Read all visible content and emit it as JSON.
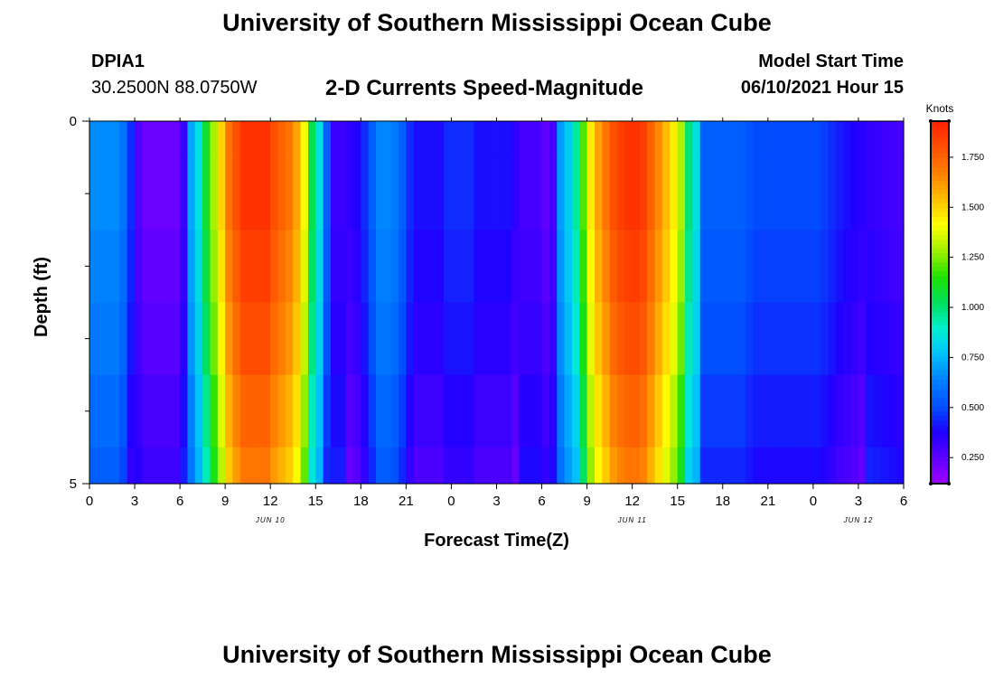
{
  "header": {
    "title": "University of Southern Mississippi Ocean Cube",
    "station_id": "DPIA1",
    "coordinates": "30.2500N  88.0750W",
    "plot_title": "2-D Currents Speed-Magnitude",
    "model_label": "Model Start Time",
    "model_time": "06/10/2021 Hour 15"
  },
  "footer": {
    "title": "University of Southern Mississippi Ocean Cube"
  },
  "chart_data": {
    "type": "heatmap",
    "title": "2-D Currents Speed-Magnitude",
    "xlabel": "Forecast Time(Z)",
    "ylabel": "Depth (ft)",
    "xlim": [
      0,
      54
    ],
    "ylim": [
      0,
      5
    ],
    "x_ticks": [
      {
        "v": 0,
        "label": "0"
      },
      {
        "v": 3,
        "label": "3"
      },
      {
        "v": 6,
        "label": "6"
      },
      {
        "v": 9,
        "label": "9"
      },
      {
        "v": 12,
        "label": "12"
      },
      {
        "v": 15,
        "label": "15"
      },
      {
        "v": 18,
        "label": "18"
      },
      {
        "v": 21,
        "label": "21"
      },
      {
        "v": 24,
        "label": "0"
      },
      {
        "v": 27,
        "label": "3"
      },
      {
        "v": 30,
        "label": "6"
      },
      {
        "v": 33,
        "label": "9"
      },
      {
        "v": 36,
        "label": "12"
      },
      {
        "v": 39,
        "label": "15"
      },
      {
        "v": 42,
        "label": "18"
      },
      {
        "v": 45,
        "label": "21"
      },
      {
        "v": 48,
        "label": "0"
      },
      {
        "v": 51,
        "label": "3"
      },
      {
        "v": 54,
        "label": "6"
      }
    ],
    "date_labels": [
      {
        "at": 12,
        "label": "JUN 10"
      },
      {
        "at": 36,
        "label": "JUN 11"
      },
      {
        "at": 51,
        "label": "JUN 12"
      }
    ],
    "y_ticks": [
      {
        "v": 0,
        "label": "0"
      },
      {
        "v": 5,
        "label": "5"
      }
    ],
    "y_minor_ticks": [
      1,
      2,
      3,
      4
    ],
    "depth_layers": [
      0,
      0.5,
      1.5,
      2.5,
      3.5,
      4.5
    ],
    "speed_profile_knots": [
      0.66,
      0.66,
      0.66,
      0.66,
      0.6,
      0.45,
      0.28,
      0.23,
      0.23,
      0.23,
      0.23,
      0.23,
      0.33,
      0.72,
      0.85,
      1.1,
      1.3,
      1.5,
      1.7,
      1.8,
      1.88,
      1.88,
      1.88,
      1.88,
      1.8,
      1.75,
      1.7,
      1.6,
      1.4,
      1.05,
      0.85,
      0.55,
      0.33,
      0.33,
      0.35,
      0.38,
      0.45,
      0.55,
      0.65,
      0.65,
      0.62,
      0.55,
      0.45,
      0.4,
      0.4,
      0.4,
      0.4,
      0.45,
      0.45,
      0.45,
      0.45,
      0.4,
      0.4,
      0.4,
      0.4,
      0.4,
      0.35,
      0.3,
      0.3,
      0.3,
      0.25,
      0.3,
      0.7,
      0.8,
      0.95,
      1.2,
      1.45,
      1.6,
      1.7,
      1.8,
      1.85,
      1.88,
      1.88,
      1.85,
      1.75,
      1.65,
      1.55,
      1.45,
      1.3,
      1.0,
      0.85,
      0.55,
      0.55,
      0.55,
      0.55,
      0.55,
      0.55,
      0.52,
      0.5,
      0.5,
      0.5,
      0.5,
      0.5,
      0.5,
      0.5,
      0.5,
      0.5,
      0.48,
      0.45,
      0.42,
      0.4,
      0.38,
      0.36,
      0.34,
      0.33,
      0.32,
      0.31,
      0.3
    ],
    "layer_speed_offsets_knots": [
      0.0,
      0.0,
      -0.03,
      -0.07,
      -0.13,
      -0.18
    ],
    "colorbar": {
      "label": "Knots",
      "min": 0.12,
      "max": 1.93,
      "ticks": [
        {
          "v": 0.25,
          "label": "0.250"
        },
        {
          "v": 0.5,
          "label": "0.500"
        },
        {
          "v": 0.75,
          "label": "0.750"
        },
        {
          "v": 1.0,
          "label": "1.000"
        },
        {
          "v": 1.25,
          "label": "1.250"
        },
        {
          "v": 1.5,
          "label": "1.500"
        },
        {
          "v": 1.75,
          "label": "1.750"
        }
      ]
    },
    "palette": [
      "#a000ff",
      "#6000ff",
      "#2000ff",
      "#0050ff",
      "#0080ff",
      "#00c0ff",
      "#00f0d0",
      "#00e060",
      "#20e000",
      "#a0f000",
      "#ffff00",
      "#ffc000",
      "#ff8000",
      "#ff5000",
      "#ff2000"
    ]
  }
}
